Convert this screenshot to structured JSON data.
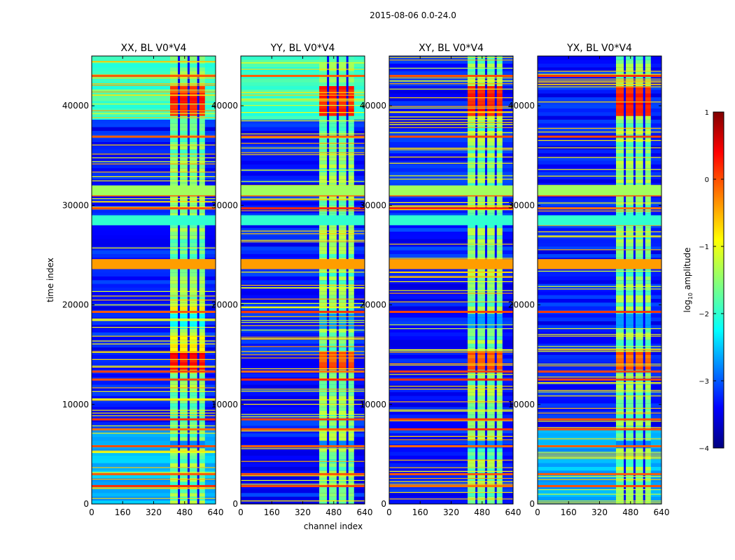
{
  "figure": {
    "suptitle": "2015-08-06 0.0-24.0"
  },
  "chart_data": {
    "type": "heatmap",
    "xlabel": "channel index",
    "ylabel": "time index",
    "xlim": [
      0,
      640
    ],
    "ylim": [
      0,
      45000
    ],
    "xticks": [
      0,
      160,
      320,
      480,
      640
    ],
    "yticks": [
      0,
      10000,
      20000,
      30000,
      40000
    ],
    "panels": [
      {
        "title": "XX, BL V0*V4",
        "pol": "XX"
      },
      {
        "title": "YY, BL V0*V4",
        "pol": "YY"
      },
      {
        "title": "XY, BL V0*V4",
        "pol": "XY"
      },
      {
        "title": "YX, BL V0*V4",
        "pol": "YX"
      }
    ],
    "rfi_channel_band": [
      405,
      585
    ],
    "rfi_channel_gaps": [
      445,
      495,
      545
    ],
    "hot_time_rows": [
      1800,
      3000,
      5800,
      7500,
      8500,
      12500,
      13300,
      19300,
      23700,
      24300,
      28500,
      29700,
      31000,
      31700,
      36900,
      43000
    ],
    "colorbar": {
      "label": "log10 amplitude",
      "label_main": "log",
      "label_sub": "10",
      "label_rest": " amplitude",
      "range": [
        -4,
        1
      ],
      "ticks": [
        1,
        0,
        -1,
        -2,
        -3,
        -4
      ],
      "tick_labels": [
        "1",
        "0",
        "−1",
        "−2",
        "−3",
        "−4"
      ],
      "colormap": [
        "#000080",
        "#0000ff",
        "#00ffff",
        "#ffff00",
        "#ff0000",
        "#800000"
      ]
    }
  }
}
